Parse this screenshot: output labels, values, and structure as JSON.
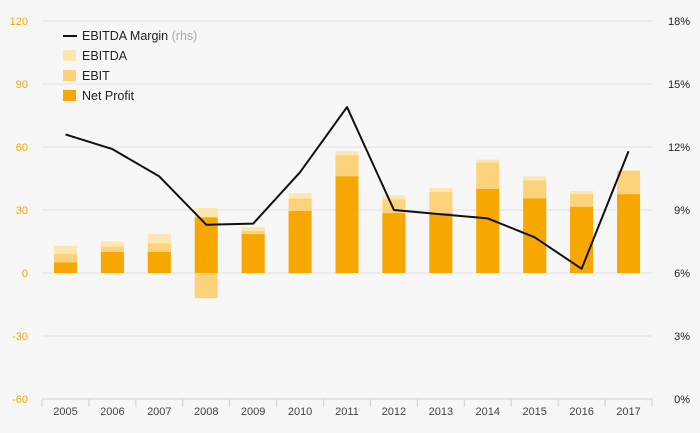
{
  "chart_data": {
    "type": "bar",
    "categories": [
      "2005",
      "2006",
      "2007",
      "2008",
      "2009",
      "2010",
      "2011",
      "2012",
      "2013",
      "2014",
      "2015",
      "2016",
      "2017"
    ],
    "series": [
      {
        "name": "EBITDA",
        "kind": "bar",
        "axis": "left",
        "color": "#fde6b0",
        "values": [
          13,
          15,
          18.5,
          31,
          22,
          38,
          58,
          37,
          40.5,
          54,
          46,
          39,
          49
        ]
      },
      {
        "name": "EBIT",
        "kind": "bar",
        "axis": "left",
        "color": "#fcd27a",
        "values": [
          9,
          12.5,
          14,
          -12,
          20,
          35.5,
          56,
          35,
          38.5,
          52.5,
          44,
          37.5,
          48.5
        ]
      },
      {
        "name": "Net Profit",
        "kind": "bar",
        "axis": "left",
        "color": "#f6a800",
        "values": [
          5,
          10,
          10,
          26.5,
          18.5,
          29.5,
          46,
          28.5,
          28.5,
          40,
          35.5,
          31.5,
          37.5
        ]
      },
      {
        "name": "EBITDA Margin",
        "legend_suffix": "(rhs)",
        "kind": "line",
        "axis": "right",
        "color": "#111111",
        "values": [
          12.6,
          11.9,
          10.6,
          8.3,
          8.35,
          10.8,
          13.9,
          9.0,
          8.8,
          8.6,
          7.7,
          6.2,
          11.8
        ]
      }
    ],
    "y_left": {
      "min": -60,
      "max": 120,
      "ticks": [
        "-60",
        "-30",
        "0",
        "30",
        "60",
        "90",
        "120"
      ],
      "color": "#f2a900"
    },
    "y_right": {
      "min": 0,
      "max": 18,
      "ticks": [
        "0%",
        "3%",
        "6%",
        "9%",
        "12%",
        "15%",
        "18%"
      ]
    },
    "grid": true,
    "legend": {
      "placement": "top-left",
      "order": [
        "EBITDA Margin",
        "EBITDA",
        "EBIT",
        "Net Profit"
      ],
      "margin_label": "EBITDA Margin",
      "margin_suffix": "(rhs)",
      "ebitda_label": "EBITDA",
      "ebit_label": "EBIT",
      "net_label": "Net Profit"
    }
  }
}
